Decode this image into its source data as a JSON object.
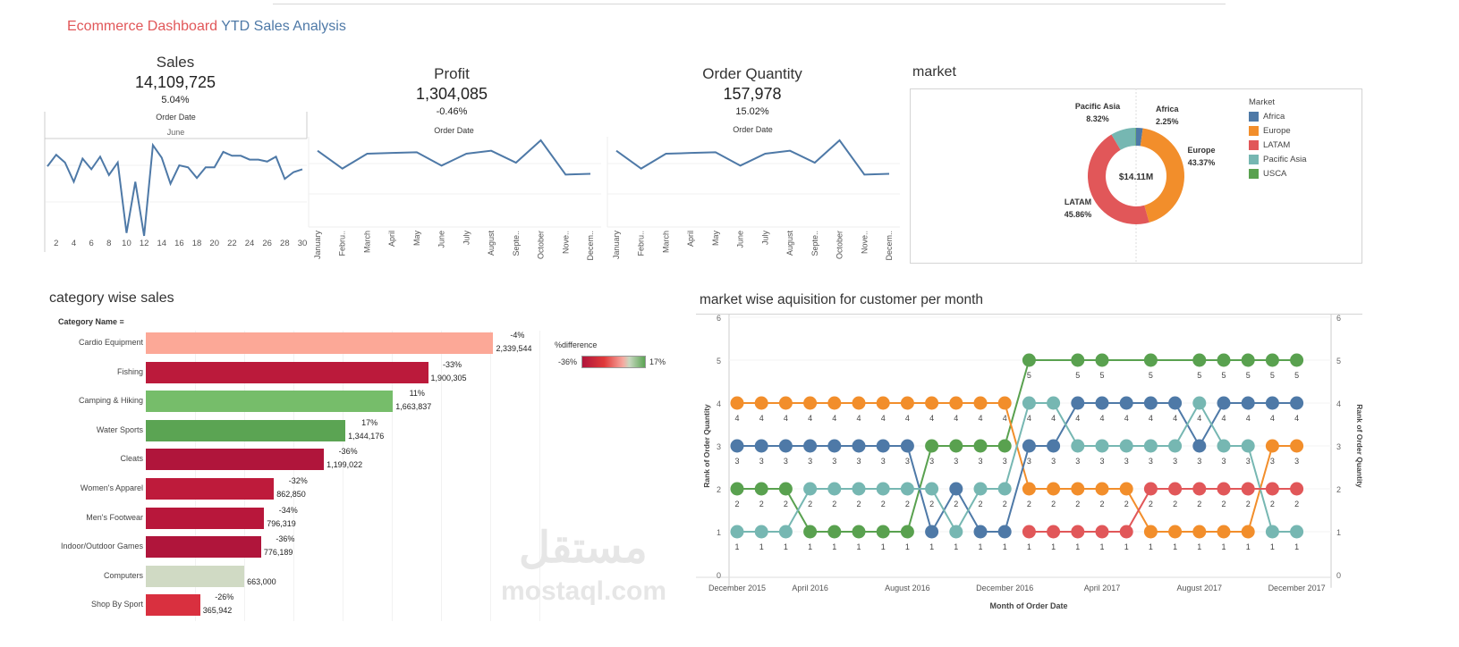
{
  "header": {
    "title_part1": "Ecommerce Dashboard",
    "title_part2": "YTD Sales Analysis"
  },
  "colors": {
    "line": "#4e79a7",
    "title_red": "#e15759",
    "title_blue": "#4e79a7"
  },
  "kpis": {
    "sales": {
      "label": "Sales",
      "value": "14,109,725",
      "change": "5.04%",
      "axis_title": "Order Date",
      "sub_header": "June",
      "x_ticks": [
        "2",
        "4",
        "6",
        "8",
        "10",
        "12",
        "14",
        "16",
        "18",
        "20",
        "22",
        "24",
        "26",
        "28",
        "30"
      ],
      "days": [
        1,
        2,
        3,
        4,
        5,
        6,
        7,
        8,
        9,
        10,
        11,
        12,
        13,
        14,
        15,
        16,
        17,
        18,
        19,
        20,
        21,
        22,
        23,
        24,
        25,
        26,
        27,
        28,
        29,
        30
      ],
      "relative_values": [
        73,
        85,
        77,
        57,
        81,
        70,
        83,
        64,
        77,
        4,
        57,
        1,
        95,
        82,
        55,
        74,
        72,
        61,
        72,
        72,
        88,
        84,
        84,
        80,
        80,
        78,
        83,
        60,
        67,
        70
      ]
    },
    "profit": {
      "label": "Profit",
      "value": "1,304,085",
      "change": "-0.46%",
      "axis_title": "Order Date"
    },
    "order_quantity": {
      "label": "Order Quantity",
      "value": "157,978",
      "change": "15.02%",
      "axis_title": "Order Date"
    },
    "months": [
      "January",
      "Febru..",
      "March",
      "April",
      "May",
      "June",
      "July",
      "August",
      "Septe..",
      "October",
      "Nove..",
      "Decem.."
    ],
    "monthly_relative_values": [
      100,
      88,
      98,
      98.5,
      99,
      90,
      98,
      100,
      92,
      107,
      84,
      84.5
    ]
  },
  "market": {
    "title": "market",
    "center_label": "$14.11M",
    "legend_title": "Market",
    "slices": [
      {
        "name": "Africa",
        "percent": 2.25,
        "label": "2.25%",
        "color": "#4e79a7"
      },
      {
        "name": "Europe",
        "percent": 43.37,
        "label": "43.37%",
        "color": "#f28e2b"
      },
      {
        "name": "LATAM",
        "percent": 45.86,
        "label": "45.86%",
        "color": "#e15759"
      },
      {
        "name": "Pacific Asia",
        "percent": 8.32,
        "label": "8.32%",
        "color": "#76b7b2"
      },
      {
        "name": "USCA",
        "percent": 0.2,
        "label": "",
        "color": "#59a14f"
      }
    ]
  },
  "category_sales": {
    "title": "category wise sales",
    "column_header": "Category Name",
    "legend_title": "%difference",
    "legend_min": "-36%",
    "legend_max": "17%",
    "xmax": 2650000,
    "rows": [
      {
        "name": "Cardio Equipment",
        "value": 2339544,
        "value_label": "2,339,544",
        "diff": "-4%",
        "color": "#fca897"
      },
      {
        "name": "Fishing",
        "value": 1900305,
        "value_label": "1,900,305",
        "diff": "-33%",
        "color": "#bb1a3b"
      },
      {
        "name": "Camping & Hiking",
        "value": 1663837,
        "value_label": "1,663,837",
        "diff": "11%",
        "color": "#76bd6a"
      },
      {
        "name": "Water Sports",
        "value": 1344176,
        "value_label": "1,344,176",
        "diff": "17%",
        "color": "#5ba453"
      },
      {
        "name": "Cleats",
        "value": 1199022,
        "value_label": "1,199,022",
        "diff": "-36%",
        "color": "#b0153b"
      },
      {
        "name": "Women's Apparel",
        "value": 862850,
        "value_label": "862,850",
        "diff": "-32%",
        "color": "#be1b3b"
      },
      {
        "name": "Men's Footwear",
        "value": 796319,
        "value_label": "796,319",
        "diff": "-34%",
        "color": "#b8173b"
      },
      {
        "name": "Indoor/Outdoor Games",
        "value": 776189,
        "value_label": "776,189",
        "diff": "-36%",
        "color": "#b0153b"
      },
      {
        "name": "Computers",
        "value": 663000,
        "value_label": "663,000",
        "diff": "",
        "color": "#d0dac4"
      },
      {
        "name": "Shop By Sport",
        "value": 365942,
        "value_label": "365,942",
        "diff": "-26%",
        "color": "#d9303f"
      }
    ]
  },
  "chart_data": {
    "type": "line",
    "title": "market wise aquisition for customer per month",
    "xlabel": "Month of Order Date",
    "ylabel": "Rank of Order Quantity",
    "ylim": [
      0,
      6
    ],
    "y_ticks": [
      "0",
      "1",
      "2",
      "3",
      "4",
      "5",
      "6"
    ],
    "x_ticks": [
      {
        "label": "December 2015",
        "index": 0
      },
      {
        "label": "April 2016",
        "index": 3
      },
      {
        "label": "August 2016",
        "index": 7
      },
      {
        "label": "December 2016",
        "index": 11
      },
      {
        "label": "April 2017",
        "index": 15
      },
      {
        "label": "August 2017",
        "index": 19
      },
      {
        "label": "December 2017",
        "index": 23
      }
    ],
    "point_count": 24,
    "series": [
      {
        "color": "#59a14f",
        "values": [
          2,
          2,
          2,
          1,
          1,
          1,
          1,
          1,
          3,
          3,
          3,
          3,
          5,
          null,
          5,
          5,
          null,
          5,
          null,
          5,
          5,
          5,
          5,
          5
        ]
      },
      {
        "color": "#f28e2b",
        "values": [
          4,
          4,
          4,
          4,
          4,
          4,
          4,
          4,
          4,
          4,
          4,
          4,
          2,
          2,
          2,
          2,
          2,
          1,
          1,
          1,
          1,
          1,
          3,
          3
        ]
      },
      {
        "color": "#4e79a7",
        "values": [
          3,
          3,
          3,
          3,
          3,
          3,
          3,
          3,
          1,
          2,
          1,
          1,
          3,
          3,
          4,
          4,
          4,
          4,
          4,
          3,
          4,
          4,
          4,
          4
        ]
      },
      {
        "color": "#76b7b2",
        "values": [
          1,
          1,
          1,
          2,
          2,
          2,
          2,
          2,
          2,
          1,
          2,
          2,
          4,
          4,
          3,
          3,
          3,
          3,
          3,
          4,
          3,
          3,
          1,
          1
        ]
      },
      {
        "color": "#e15759",
        "values": [
          null,
          null,
          null,
          null,
          null,
          null,
          null,
          null,
          null,
          null,
          null,
          null,
          1,
          1,
          1,
          1,
          1,
          2,
          2,
          2,
          2,
          2,
          2,
          2
        ]
      }
    ]
  },
  "watermark": {
    "arabic": "مستقل",
    "latin": "mostaql.com"
  }
}
